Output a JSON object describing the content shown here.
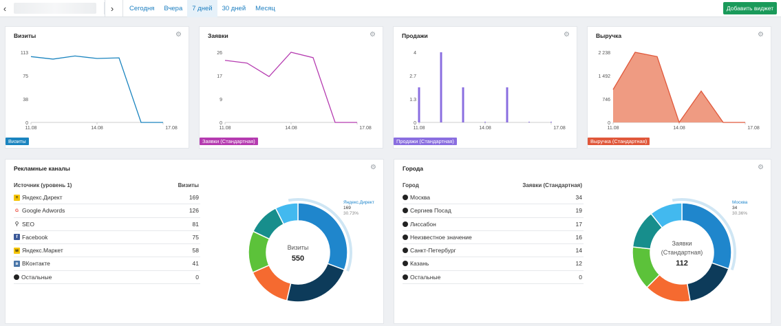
{
  "toolbar": {
    "ranges": [
      "Сегодня",
      "Вчера",
      "7 дней",
      "30 дней",
      "Месяц"
    ],
    "active_range": "7 дней",
    "add_widget_label": "Добавить виджет"
  },
  "widgets": [
    {
      "title": "Визиты",
      "legend": "Визиты",
      "color": "#1a84bf",
      "yticks": [
        "113",
        "75",
        "38",
        "0"
      ],
      "xticks": [
        "11.08",
        "14.08",
        "17.08"
      ],
      "chart_data": {
        "type": "line",
        "x": [
          "11.08",
          "12.08",
          "13.08",
          "14.08",
          "15.08",
          "16.08",
          "17.08"
        ],
        "values": [
          106,
          102,
          107,
          103,
          104,
          0,
          0
        ],
        "ylim": [
          0,
          113
        ]
      }
    },
    {
      "title": "Заявки",
      "legend": "Заявки (Стандартная)",
      "color": "#b53bb0",
      "yticks": [
        "26",
        "17",
        "9",
        "0"
      ],
      "xticks": [
        "11.08",
        "14.08",
        "17.08"
      ],
      "chart_data": {
        "type": "line",
        "x": [
          "11.08",
          "12.08",
          "13.08",
          "14.08",
          "15.08",
          "16.08",
          "17.08"
        ],
        "values": [
          23,
          22,
          17,
          26,
          24,
          0,
          0
        ],
        "ylim": [
          0,
          26
        ]
      }
    },
    {
      "title": "Продажи",
      "legend": "Продажи (Стандартная)",
      "color": "#8a6ee0",
      "yticks": [
        "4",
        "2.7",
        "1.3",
        "0"
      ],
      "xticks": [
        "11.08",
        "14.08",
        "17.08"
      ],
      "chart_data": {
        "type": "bar",
        "x": [
          "11.08",
          "12.08",
          "13.08",
          "14.08",
          "15.08",
          "16.08",
          "17.08"
        ],
        "values": [
          2,
          4,
          2,
          0,
          2,
          0,
          0
        ],
        "ylim": [
          0,
          4
        ]
      }
    },
    {
      "title": "Выручка",
      "legend": "Выручка (Стандартная)",
      "color": "#e0573a",
      "fill": "#ef9b82",
      "yticks": [
        "2 238",
        "1 492",
        "746",
        "0"
      ],
      "xticks": [
        "11.08",
        "14.08",
        "17.08"
      ],
      "chart_data": {
        "type": "area",
        "x": [
          "11.08",
          "12.08",
          "13.08",
          "14.08",
          "15.08",
          "16.08",
          "17.08"
        ],
        "values": [
          1050,
          2238,
          2100,
          0,
          1000,
          0,
          0
        ],
        "ylim": [
          0,
          2238
        ]
      }
    }
  ],
  "channels": {
    "title": "Рекламные каналы",
    "col_source": "Источник (уровень 1)",
    "col_value": "Визиты",
    "rows": [
      {
        "label": "Яндекс.Директ",
        "value": "169",
        "icon": "yandex-direct-icon",
        "color": "#f5c400"
      },
      {
        "label": "Google Adwords",
        "value": "126",
        "icon": "google-icon",
        "color": "#4285f4"
      },
      {
        "label": "SEO",
        "value": "81",
        "icon": "search-icon",
        "color": "#333333"
      },
      {
        "label": "Facebook",
        "value": "75",
        "icon": "facebook-icon",
        "color": "#3b5998"
      },
      {
        "label": "Яндекс.Маркет",
        "value": "58",
        "icon": "yandex-market-icon",
        "color": "#f5c400"
      },
      {
        "label": "ВКонтакте",
        "value": "41",
        "icon": "vk-icon",
        "color": "#4a76a8"
      },
      {
        "label": "Остальные",
        "value": "0",
        "icon": "dot-icon",
        "color": "#222222"
      }
    ],
    "donut": {
      "center_label": "Визиты",
      "center_value": "550",
      "callout_name": "Яндекс.Директ",
      "callout_value": "169",
      "callout_pct": "30.73%",
      "chart_data": {
        "type": "pie",
        "labels": [
          "Яндекс.Директ",
          "Google Adwords",
          "SEO",
          "Facebook",
          "Яндекс.Маркет",
          "ВКонтакте",
          "Остальные"
        ],
        "values": [
          169,
          126,
          81,
          75,
          58,
          41,
          0
        ]
      }
    }
  },
  "cities": {
    "title": "Города",
    "col_source": "Город",
    "col_value": "Заявки (Стандартная)",
    "rows": [
      {
        "label": "Москва",
        "value": "34"
      },
      {
        "label": "Сергиев Посад",
        "value": "19"
      },
      {
        "label": "Лиссабон",
        "value": "17"
      },
      {
        "label": "Неизвестное значение",
        "value": "16"
      },
      {
        "label": "Санкт-Петербург",
        "value": "14"
      },
      {
        "label": "Казань",
        "value": "12"
      },
      {
        "label": "Остальные",
        "value": "0"
      }
    ],
    "donut": {
      "center_label_1": "Заявки",
      "center_label_2": "(Стандартная)",
      "center_value": "112",
      "callout_name": "Москва",
      "callout_value": "34",
      "callout_pct": "30.36%",
      "chart_data": {
        "type": "pie",
        "labels": [
          "Москва",
          "Сергиев Посад",
          "Лиссабон",
          "Неизвестное значение",
          "Санкт-Петербург",
          "Казань",
          "Остальные"
        ],
        "values": [
          34,
          19,
          17,
          16,
          14,
          12,
          0
        ]
      }
    }
  },
  "donut_colors": [
    "#1f86cc",
    "#0d3b5a",
    "#f56a30",
    "#5cc23a",
    "#178e8c",
    "#42b9ef",
    "#c8e3f3"
  ]
}
